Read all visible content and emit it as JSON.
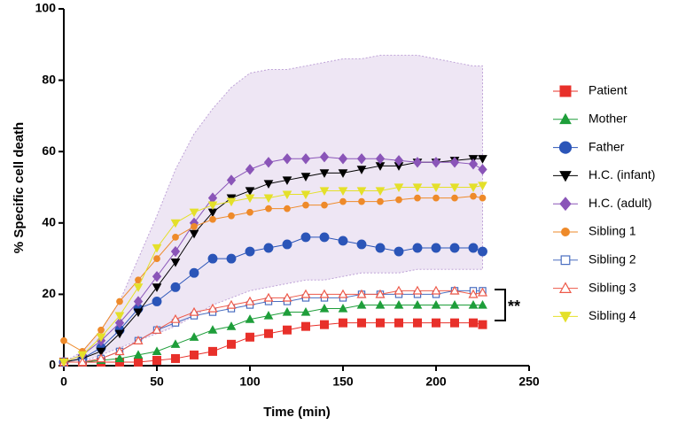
{
  "chart_data": {
    "type": "line",
    "xlabel": "Time (min)",
    "ylabel": "% Specific cell death",
    "x": [
      0,
      10,
      20,
      30,
      40,
      50,
      60,
      70,
      80,
      90,
      100,
      110,
      120,
      130,
      140,
      150,
      160,
      170,
      180,
      190,
      200,
      210,
      220,
      225
    ],
    "xlim": [
      0,
      250
    ],
    "xticks": [
      0,
      50,
      100,
      150,
      200,
      250
    ],
    "ylim": [
      0,
      100
    ],
    "yticks": [
      0,
      20,
      40,
      60,
      80,
      100
    ],
    "grid": false,
    "legend": "right",
    "annotation": "**",
    "series": [
      {
        "name": "Patient",
        "color": "#e8302a",
        "marker": "square",
        "values": [
          1,
          1,
          1,
          1,
          1,
          1.5,
          2,
          3,
          4,
          6,
          8,
          9,
          10,
          11,
          11.5,
          12,
          12,
          12,
          12,
          12,
          12,
          12,
          12,
          11.5
        ]
      },
      {
        "name": "Mother",
        "color": "#1e9e3a",
        "marker": "triangle-up",
        "values": [
          1,
          1,
          1.5,
          2,
          3,
          4,
          6,
          8,
          10,
          11,
          13,
          14,
          15,
          15,
          16,
          16,
          17,
          17,
          17,
          17,
          17,
          17,
          17,
          17
        ]
      },
      {
        "name": "Father",
        "color": "#2b55b8",
        "marker": "circle",
        "values": [
          1,
          2,
          5,
          10,
          16,
          18,
          22,
          26,
          30,
          30,
          32,
          33,
          34,
          36,
          36,
          35,
          34,
          33,
          32,
          33,
          33,
          33,
          33,
          32
        ]
      },
      {
        "name": "H.C. (infant)",
        "color": "#000000",
        "marker": "triangle-down",
        "values": [
          1,
          2,
          4,
          9,
          15,
          22,
          29,
          37,
          43,
          47,
          49,
          51,
          52,
          53,
          54,
          54,
          55,
          56,
          56,
          57,
          57,
          57.5,
          58,
          58
        ]
      },
      {
        "name": "H.C. (adult)",
        "color": "#8a55b8",
        "marker": "diamond",
        "values": [
          1,
          3,
          7,
          12,
          18,
          25,
          32,
          40,
          47,
          52,
          55,
          57,
          58,
          58,
          58.5,
          58,
          58,
          58,
          57.5,
          57,
          57,
          57,
          56.5,
          55
        ],
        "upper": [
          1,
          4,
          10,
          18,
          30,
          42,
          55,
          65,
          72,
          78,
          82,
          83,
          83,
          84,
          85,
          86,
          86,
          87,
          87,
          87,
          86,
          85,
          84,
          84
        ],
        "lower": [
          1,
          1,
          3,
          5,
          7,
          9,
          11,
          14,
          17,
          19,
          21,
          22,
          23,
          24,
          24,
          25,
          26,
          26,
          26,
          27,
          27,
          27,
          27,
          27
        ]
      },
      {
        "name": "Sibling 1",
        "color": "#ee8a2a",
        "marker": "small-circle",
        "values": [
          7,
          4,
          10,
          18,
          24,
          30,
          36,
          39,
          41,
          42,
          43,
          44,
          44,
          45,
          45,
          46,
          46,
          46,
          46.5,
          47,
          47,
          47,
          47.5,
          47
        ]
      },
      {
        "name": "Sibling 2",
        "color": "#4a6ec0",
        "marker": "open-square",
        "values": [
          1,
          1,
          2,
          4,
          7,
          10,
          12,
          14,
          15,
          16,
          17,
          18,
          18,
          19,
          19,
          19,
          20,
          20,
          20,
          20,
          20,
          21,
          21,
          21
        ]
      },
      {
        "name": "Sibling 3",
        "color": "#ee5a4a",
        "marker": "open-triangle",
        "values": [
          1,
          1,
          2,
          4,
          7,
          10,
          13,
          15,
          16,
          17,
          18,
          19,
          19,
          20,
          20,
          20,
          20,
          20,
          21,
          21,
          21,
          21,
          20,
          20.5
        ]
      },
      {
        "name": "Sibling 4",
        "color": "#e4e02a",
        "marker": "triangle-down",
        "values": [
          1,
          3,
          8,
          14,
          22,
          33,
          40,
          43,
          45,
          46,
          47,
          47,
          48,
          48,
          49,
          49,
          49,
          49,
          50,
          50,
          50,
          50,
          50,
          50.5
        ]
      }
    ]
  }
}
